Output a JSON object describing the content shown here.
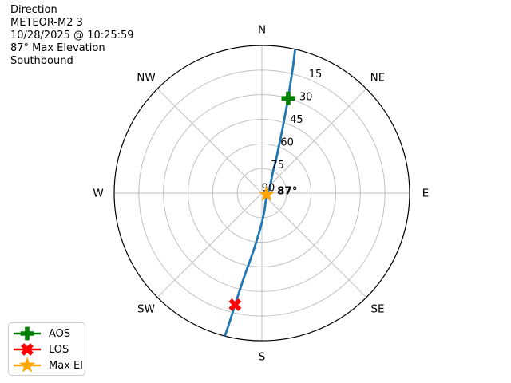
{
  "header": {
    "lines": [
      "Direction",
      "METEOR-M2 3",
      "10/28/2025 @ 10:25:59",
      "87° Max Elevation",
      "Southbound"
    ]
  },
  "chart_data": {
    "type": "line",
    "projection": "polar-sky-plot",
    "description": "Satellite pass sky track, azimuth (compass) vs elevation (90 at center, 0 at horizon edge)",
    "style": {
      "track_color": "#1f77b4",
      "grid_color": "#c0c0c0",
      "outline_color": "#000000",
      "text_color": "#000000",
      "aos_color": "#008000",
      "los_color": "#ff0000",
      "max_el_color": "#ffa500"
    },
    "compass": [
      {
        "label": "N",
        "az_deg": 0
      },
      {
        "label": "NE",
        "az_deg": 45
      },
      {
        "label": "E",
        "az_deg": 90
      },
      {
        "label": "SE",
        "az_deg": 135
      },
      {
        "label": "S",
        "az_deg": 180
      },
      {
        "label": "SW",
        "az_deg": 225
      },
      {
        "label": "W",
        "az_deg": 270
      },
      {
        "label": "NW",
        "az_deg": 315
      }
    ],
    "elevation_ticks": [
      15,
      30,
      45,
      60,
      75,
      90
    ],
    "tick_label_azimuth_deg": 22.5,
    "track": {
      "points_az_el": [
        [
          13.0,
          0
        ],
        [
          13.8,
          10
        ],
        [
          14.5,
          20
        ],
        [
          15.5,
          30
        ],
        [
          16.5,
          40
        ],
        [
          18.0,
          50
        ],
        [
          20.0,
          60
        ],
        [
          23.0,
          68
        ],
        [
          27.0,
          75
        ],
        [
          35.0,
          80
        ],
        [
          55.0,
          84
        ],
        [
          80.0,
          86.3
        ],
        [
          104.0,
          87
        ],
        [
          130.0,
          86.3
        ],
        [
          155.0,
          84.5
        ],
        [
          168.0,
          81
        ],
        [
          175.0,
          77
        ],
        [
          180.0,
          72
        ],
        [
          184.5,
          65
        ],
        [
          187.5,
          57
        ],
        [
          190.0,
          48
        ],
        [
          191.8,
          39
        ],
        [
          192.8,
          30
        ],
        [
          193.5,
          20
        ],
        [
          194.0,
          10
        ],
        [
          194.5,
          0
        ]
      ]
    },
    "markers": [
      {
        "id": "aos",
        "label": "AOS",
        "shape": "plus",
        "color": "#008000",
        "az_deg": 15.5,
        "el_deg": 30
      },
      {
        "id": "los",
        "label": "LOS",
        "shape": "x",
        "color": "#ff0000",
        "az_deg": 193.5,
        "el_deg": 20
      },
      {
        "id": "max-el",
        "label": "Max El",
        "shape": "star",
        "color": "#ffa500",
        "az_deg": 104.0,
        "el_deg": 87
      }
    ],
    "annotation": {
      "text": "87°",
      "az_deg": 104.0,
      "el_deg": 87
    }
  },
  "legend": {
    "items": [
      {
        "label": "AOS",
        "shape": "plus",
        "color": "#008000"
      },
      {
        "label": "LOS",
        "shape": "x",
        "color": "#ff0000"
      },
      {
        "label": "Max El",
        "shape": "star",
        "color": "#ffa500"
      }
    ]
  }
}
